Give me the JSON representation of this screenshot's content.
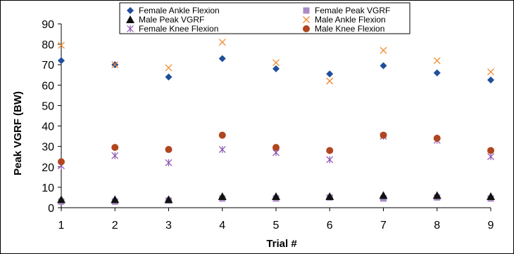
{
  "chart_data": {
    "type": "scatter",
    "title": "",
    "xlabel": "Trial #",
    "ylabel": "Peak VGRF (BW)",
    "x": [
      1,
      2,
      3,
      4,
      5,
      6,
      7,
      8,
      9
    ],
    "xlim": [
      1,
      9
    ],
    "ylim": [
      0,
      90
    ],
    "x_ticks": [
      1,
      2,
      3,
      4,
      5,
      6,
      7,
      8,
      9
    ],
    "y_ticks": [
      0,
      10,
      20,
      30,
      40,
      50,
      60,
      70,
      80,
      90
    ],
    "grid": false,
    "legend_position": "top",
    "series": [
      {
        "name": "Female Ankle Flexion",
        "marker": "diamond",
        "color": "#1f4e9a",
        "values": [
          72,
          70,
          64,
          73,
          68,
          65.5,
          69.5,
          66,
          62.5
        ]
      },
      {
        "name": "Female Peak VGRF",
        "marker": "square",
        "color": "#a98bc4",
        "values": [
          3,
          3,
          3.5,
          4.5,
          4.5,
          5,
          4.5,
          5,
          4.5
        ]
      },
      {
        "name": "Male Peak VGRF",
        "marker": "triangle",
        "color": "#111111",
        "values": [
          4,
          4,
          4,
          5.5,
          5.5,
          5.5,
          6,
          6,
          5.5
        ]
      },
      {
        "name": "Male Ankle Flexion",
        "marker": "x",
        "color": "#f08a2c",
        "values": [
          79.5,
          70,
          68.5,
          81,
          71,
          62,
          77,
          72,
          66.5
        ]
      },
      {
        "name": "Female Knee Flexion",
        "marker": "asterisk",
        "color": "#8e55b5",
        "values": [
          20.5,
          25.5,
          22,
          28.5,
          27,
          23.5,
          35,
          33,
          25
        ]
      },
      {
        "name": "Male Knee Flexion",
        "marker": "circle",
        "color": "#b0451f",
        "values": [
          22.5,
          29.5,
          28.5,
          35.5,
          29.5,
          28,
          35.5,
          34,
          28
        ]
      }
    ]
  }
}
